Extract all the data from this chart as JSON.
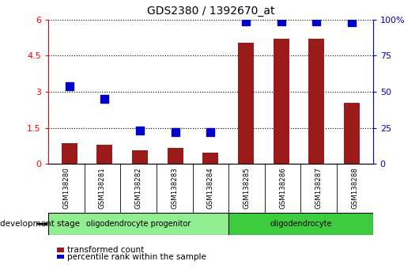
{
  "title": "GDS2380 / 1392670_at",
  "samples": [
    "GSM138280",
    "GSM138281",
    "GSM138282",
    "GSM138283",
    "GSM138284",
    "GSM138285",
    "GSM138286",
    "GSM138287",
    "GSM138288"
  ],
  "transformed_count": [
    0.85,
    0.8,
    0.55,
    0.65,
    0.45,
    5.05,
    5.2,
    5.2,
    2.55
  ],
  "percentile_rank": [
    54,
    45,
    23,
    22,
    22,
    99,
    99,
    99,
    98
  ],
  "bar_color": "#9B1B1B",
  "dot_color": "#0000CC",
  "ylim_left": [
    0,
    6
  ],
  "ylim_right": [
    0,
    100
  ],
  "yticks_left": [
    0,
    1.5,
    3.0,
    4.5,
    6.0
  ],
  "ytick_labels_left": [
    "0",
    "1.5",
    "3",
    "4.5",
    "6"
  ],
  "yticks_right": [
    0,
    25,
    50,
    75,
    100
  ],
  "ytick_labels_right": [
    "0",
    "25",
    "50",
    "75",
    "100%"
  ],
  "groups": [
    {
      "label": "oligodendrocyte progenitor",
      "start": 0,
      "end": 5,
      "color": "#90EE90"
    },
    {
      "label": "oligodendrocyte",
      "start": 5,
      "end": 9,
      "color": "#3DCC3D"
    }
  ],
  "xlabel_label": "development stage",
  "legend_bar_label": "transformed count",
  "legend_dot_label": "percentile rank within the sample",
  "grid_linestyle": ":",
  "grid_color": "black",
  "background_color": "#ffffff",
  "plot_bg_color": "#ffffff",
  "x_label_area_color": "#CCCCCC",
  "bar_width": 0.45,
  "dot_size": 55,
  "dot_marker": "s"
}
